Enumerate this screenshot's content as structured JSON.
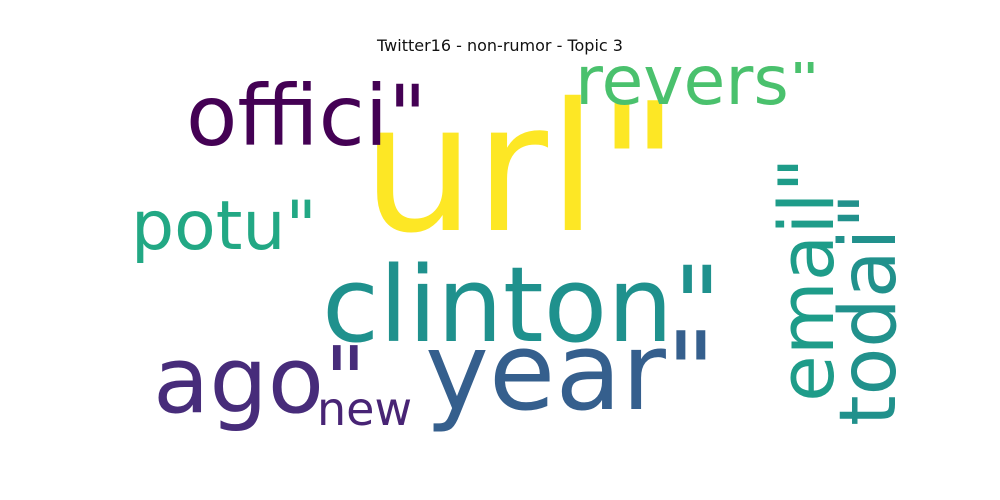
{
  "title": "Twitter16 - non-rumor - Topic 3",
  "words": [
    {
      "id": "url",
      "text": "url\"",
      "color": "#fde725",
      "orientation": "horizontal"
    },
    {
      "id": "offici",
      "text": "offici\"",
      "color": "#440154",
      "orientation": "horizontal"
    },
    {
      "id": "revers",
      "text": "revers\"",
      "color": "#4ac16d",
      "orientation": "horizontal"
    },
    {
      "id": "potu",
      "text": "potu\"",
      "color": "#22a884",
      "orientation": "horizontal"
    },
    {
      "id": "clinton",
      "text": "clinton\"",
      "color": "#1f918d",
      "orientation": "horizontal"
    },
    {
      "id": "year",
      "text": "year\"",
      "color": "#355f8d",
      "orientation": "horizontal"
    },
    {
      "id": "ago",
      "text": "ago\"",
      "color": "#472c7a",
      "orientation": "horizontal"
    },
    {
      "id": "new",
      "text": "new",
      "color": "#482475",
      "orientation": "horizontal"
    },
    {
      "id": "email",
      "text": "email\"",
      "color": "#1e9c89",
      "orientation": "vertical"
    },
    {
      "id": "todai",
      "text": "todai\"",
      "color": "#21918c",
      "orientation": "vertical"
    }
  ]
}
